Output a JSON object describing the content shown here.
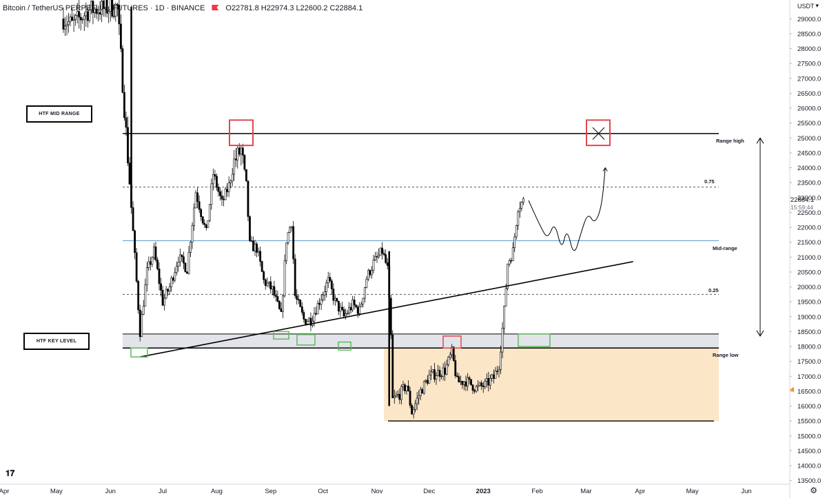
{
  "header": {
    "symbol": "Bitcoin / TetherUS PERPETUAL FUTURES · 1D · BINANCE",
    "ohlc": "O22781.8 H22974.3 L22600.2 C22884.1"
  },
  "currency": "USDT",
  "last_price": "22884.1",
  "countdown": "15:59:44",
  "annotations": {
    "htf_mid_range": "HTF MID RANGE",
    "htf_key_level": "HTF KEY LEVEL",
    "range_high": "Range high",
    "range_low": "Range low",
    "mid_range": "Mid-range",
    "fib_075": "0.75",
    "fib_025": "0.25"
  },
  "colors": {
    "candle": "#000000",
    "mid_line": "#5b9bd5",
    "key_zone": "#e3e4ea",
    "orange_zone": "#fbe6c8",
    "red_box": "#e0474c",
    "green_box": "#5cb85c",
    "accent_marker": "#f7931a"
  },
  "icons": [
    "tradingview-logo-icon",
    "settings-gear-icon",
    "currency-dropdown-icon",
    "alert-flag-icon"
  ],
  "chart_data": {
    "type": "candlestick",
    "title": "Bitcoin / TetherUS PERPETUAL FUTURES · 1D · BINANCE",
    "x_ticks": [
      "Apr",
      "May",
      "Jun",
      "Jul",
      "Aug",
      "Sep",
      "Oct",
      "Nov",
      "Dec",
      "2023",
      "Feb",
      "Mar",
      "Apr",
      "May",
      "Jun"
    ],
    "y_ticks": [
      13500,
      14000,
      14500,
      15000,
      15500,
      16000,
      16500,
      17000,
      17500,
      18000,
      18500,
      19000,
      19500,
      20000,
      20500,
      21000,
      21500,
      22000,
      22500,
      23000,
      23500,
      24000,
      24500,
      25000,
      25500,
      26000,
      26500,
      27000,
      27500,
      28000,
      28500,
      29000
    ],
    "ylim": [
      13400,
      29400
    ],
    "levels": {
      "range_high": 25150,
      "fib_075": 23350,
      "mid_range": 21550,
      "fib_025": 19750,
      "range_low": 17950,
      "key_zone": [
        17950,
        18420
      ],
      "orange_zone_bottom": 15500
    },
    "price_path": [
      [
        "2022-05-05",
        29000
      ],
      [
        "2022-05-10",
        28800
      ],
      [
        "2022-05-20",
        29300
      ],
      [
        "2022-06-05",
        29400
      ],
      [
        "2022-06-12",
        23500
      ],
      [
        "2022-06-15",
        21000
      ],
      [
        "2022-06-18",
        18500
      ],
      [
        "2022-06-22",
        20500
      ],
      [
        "2022-06-26",
        21200
      ],
      [
        "2022-07-01",
        19500
      ],
      [
        "2022-07-05",
        20000
      ],
      [
        "2022-07-10",
        21000
      ],
      [
        "2022-07-15",
        20600
      ],
      [
        "2022-07-20",
        23200
      ],
      [
        "2022-07-26",
        21800
      ],
      [
        "2022-07-30",
        23800
      ],
      [
        "2022-08-04",
        22800
      ],
      [
        "2022-08-08",
        23400
      ],
      [
        "2022-08-11",
        24200
      ],
      [
        "2022-08-15",
        24600
      ],
      [
        "2022-08-18",
        23400
      ],
      [
        "2022-08-20",
        21400
      ],
      [
        "2022-08-24",
        21300
      ],
      [
        "2022-08-28",
        20200
      ],
      [
        "2022-09-02",
        19900
      ],
      [
        "2022-09-07",
        19000
      ],
      [
        "2022-09-10",
        21600
      ],
      [
        "2022-09-13",
        22200
      ],
      [
        "2022-09-15",
        19700
      ],
      [
        "2022-09-20",
        18900
      ],
      [
        "2022-09-24",
        18900
      ],
      [
        "2022-09-28",
        19400
      ],
      [
        "2022-10-04",
        20200
      ],
      [
        "2022-10-08",
        19500
      ],
      [
        "2022-10-13",
        19000
      ],
      [
        "2022-10-18",
        19400
      ],
      [
        "2022-10-22",
        19200
      ],
      [
        "2022-10-26",
        20300
      ],
      [
        "2022-10-30",
        20800
      ],
      [
        "2022-11-04",
        21200
      ],
      [
        "2022-11-07",
        20600
      ],
      [
        "2022-11-09",
        18300
      ],
      [
        "2022-11-10",
        16200
      ],
      [
        "2022-11-14",
        16400
      ],
      [
        "2022-11-18",
        16700
      ],
      [
        "2022-11-21",
        15800
      ],
      [
        "2022-11-26",
        16500
      ],
      [
        "2022-12-01",
        17000
      ],
      [
        "2022-12-05",
        17100
      ],
      [
        "2022-12-10",
        17200
      ],
      [
        "2022-12-14",
        17800
      ],
      [
        "2022-12-17",
        16800
      ],
      [
        "2022-12-22",
        16850
      ],
      [
        "2022-12-28",
        16600
      ],
      [
        "2023-01-02",
        16700
      ],
      [
        "2023-01-07",
        16950
      ],
      [
        "2023-01-10",
        17400
      ],
      [
        "2023-01-13",
        19200
      ],
      [
        "2023-01-15",
        20800
      ],
      [
        "2023-01-18",
        21200
      ],
      [
        "2023-01-21",
        22700
      ],
      [
        "2023-01-24",
        22884
      ]
    ],
    "projection_path": [
      [
        "2023-01-27",
        22900
      ],
      [
        "2023-02-03",
        22000
      ],
      [
        "2023-02-07",
        21600
      ],
      [
        "2023-02-11",
        22200
      ],
      [
        "2023-02-15",
        21200
      ],
      [
        "2023-02-18",
        22000
      ],
      [
        "2023-02-22",
        21000
      ],
      [
        "2023-02-26",
        21800
      ],
      [
        "2023-03-02",
        22500
      ],
      [
        "2023-03-06",
        22100
      ],
      [
        "2023-03-10",
        22700
      ],
      [
        "2023-03-12",
        24000
      ]
    ],
    "trendline": [
      [
        "2022-06-18",
        17650
      ],
      [
        "2023-03-28",
        20850
      ]
    ]
  }
}
